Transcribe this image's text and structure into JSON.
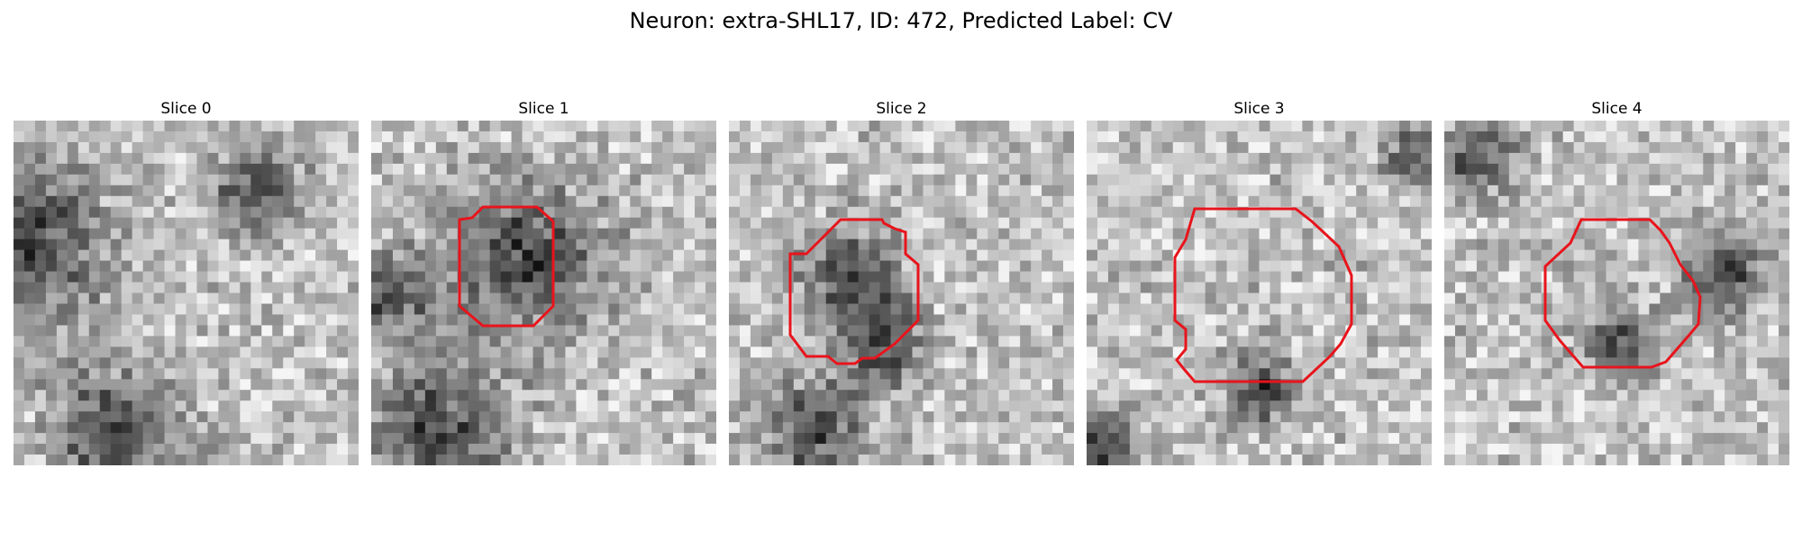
{
  "figure": {
    "title": "Neuron: extra-SHL17, ID: 472, Predicted Label: CV"
  },
  "panels": [
    {
      "title": "Slice 0",
      "has_contour": false,
      "dark_spots": [
        [
          0.05,
          0.35,
          0.22
        ],
        [
          0.7,
          0.2,
          0.12
        ],
        [
          0.3,
          0.9,
          0.18
        ]
      ]
    },
    {
      "title": "Slice 1",
      "has_contour": true,
      "dark_spots": [
        [
          0.45,
          0.4,
          0.22
        ],
        [
          0.2,
          0.9,
          0.2
        ],
        [
          0.05,
          0.5,
          0.12
        ]
      ]
    },
    {
      "title": "Slice 2",
      "has_contour": true,
      "dark_spots": [
        [
          0.35,
          0.45,
          0.14
        ],
        [
          0.45,
          0.65,
          0.12
        ],
        [
          0.25,
          0.9,
          0.15
        ]
      ]
    },
    {
      "title": "Slice 3",
      "has_contour": true,
      "dark_spots": [
        [
          0.5,
          0.78,
          0.1
        ],
        [
          0.95,
          0.1,
          0.08
        ],
        [
          0.05,
          0.95,
          0.1
        ]
      ]
    },
    {
      "title": "Slice 4",
      "has_contour": true,
      "dark_spots": [
        [
          0.8,
          0.45,
          0.12
        ],
        [
          0.5,
          0.65,
          0.1
        ],
        [
          0.1,
          0.1,
          0.1
        ]
      ]
    }
  ],
  "colors": {
    "contour": "#e8141c",
    "background": "#ffffff"
  }
}
